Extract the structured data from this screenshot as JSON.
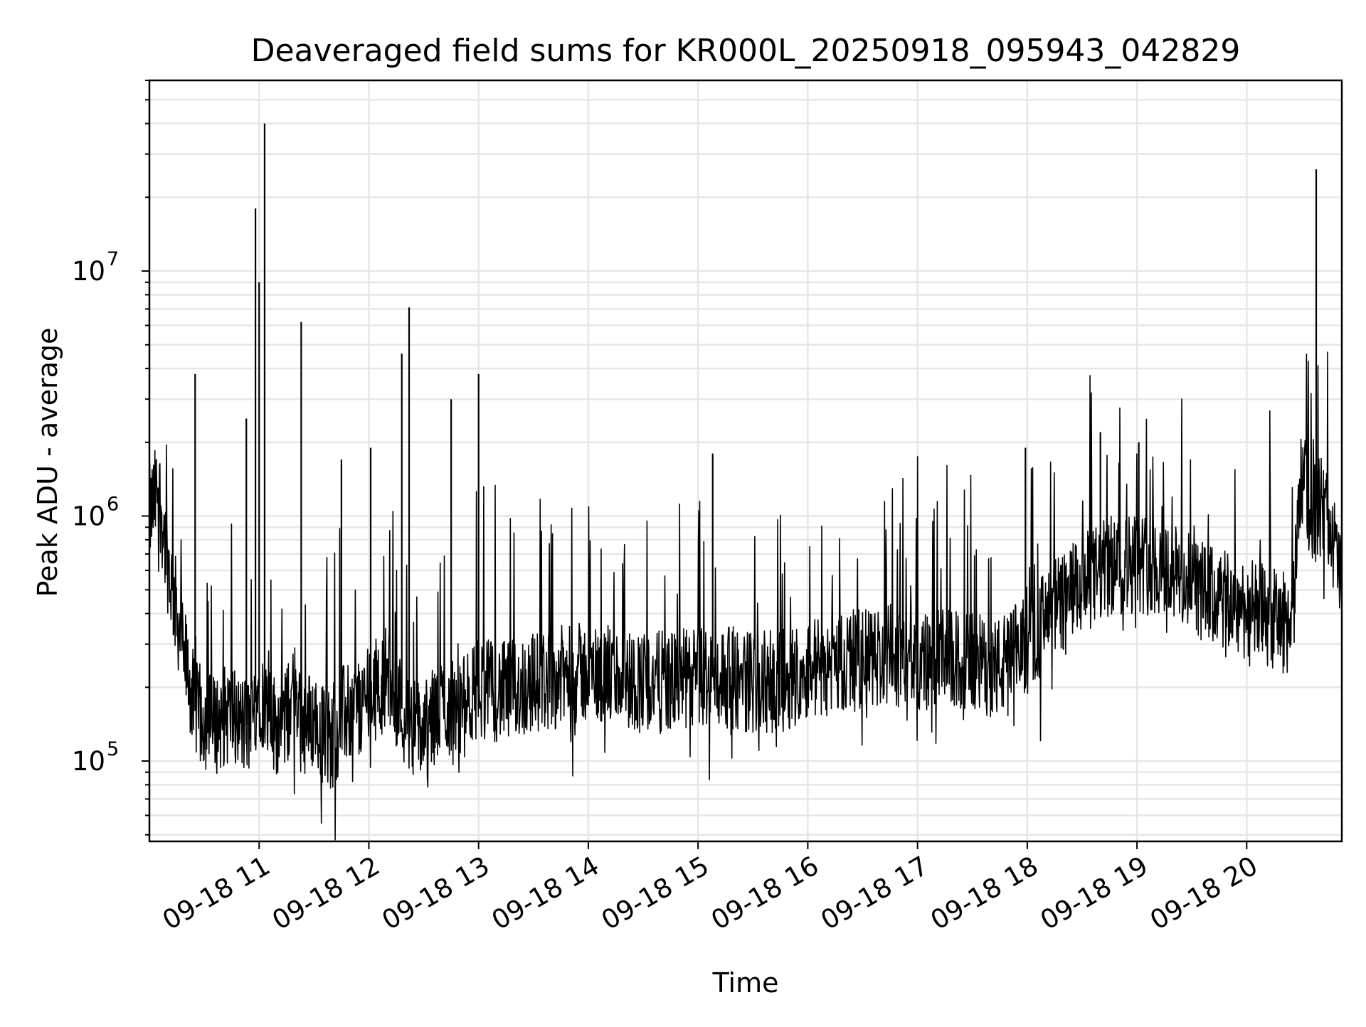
{
  "chart_data": {
    "type": "line",
    "title": "Deaveraged field sums for KR000L_20250918_095943_042829",
    "xlabel": "Time",
    "ylabel": "Peak ADU - average",
    "y_scale": "log",
    "ylim": [
      47000,
      60000000
    ],
    "xlim": [
      "09-18 10:00",
      "09-18 20:52"
    ],
    "x_ticks": [
      "09-18 11",
      "09-18 12",
      "09-18 13",
      "09-18 14",
      "09-18 15",
      "09-18 16",
      "09-18 17",
      "09-18 18",
      "09-18 19",
      "09-18 20"
    ],
    "y_ticks": [
      {
        "base": "10",
        "exp": "5",
        "value": 100000
      },
      {
        "base": "10",
        "exp": "6",
        "value": 1000000
      },
      {
        "base": "10",
        "exp": "7",
        "value": 10000000
      }
    ],
    "grid": true,
    "legend": "none",
    "series": [
      {
        "color": "#000000",
        "x": [
          "09-18 10:00",
          "09-18 10:05",
          "09-18 10:10",
          "09-18 10:15",
          "09-18 10:20",
          "09-18 10:25",
          "09-18 10:30",
          "09-18 10:35",
          "09-18 10:40",
          "09-18 10:45",
          "09-18 10:50",
          "09-18 10:55",
          "09-18 11:00",
          "09-18 11:05",
          "09-18 11:10",
          "09-18 11:15",
          "09-18 11:20",
          "09-18 11:25",
          "09-18 11:30",
          "09-18 11:35",
          "09-18 11:40",
          "09-18 11:45",
          "09-18 11:50",
          "09-18 11:55",
          "09-18 12:00",
          "09-18 12:10",
          "09-18 12:20",
          "09-18 12:30",
          "09-18 12:40",
          "09-18 12:50",
          "09-18 13:00",
          "09-18 13:15",
          "09-18 13:30",
          "09-18 13:45",
          "09-18 14:00",
          "09-18 14:15",
          "09-18 14:30",
          "09-18 14:45",
          "09-18 15:00",
          "09-18 15:15",
          "09-18 15:30",
          "09-18 15:45",
          "09-18 16:00",
          "09-18 16:15",
          "09-18 16:30",
          "09-18 16:45",
          "09-18 17:00",
          "09-18 17:15",
          "09-18 17:30",
          "09-18 17:45",
          "09-18 18:00",
          "09-18 18:15",
          "09-18 18:30",
          "09-18 18:45",
          "09-18 19:00",
          "09-18 19:15",
          "09-18 19:30",
          "09-18 19:45",
          "09-18 20:00",
          "09-18 20:15",
          "09-18 20:25",
          "09-18 20:30",
          "09-18 20:35",
          "09-18 20:40",
          "09-18 20:45",
          "09-18 20:50"
        ],
        "y": [
          1000000,
          1300000,
          650000,
          400000,
          250000,
          160000,
          150000,
          140000,
          150000,
          160000,
          140000,
          140000,
          200000,
          150000,
          140000,
          150000,
          200000,
          140000,
          150000,
          130000,
          120000,
          150000,
          160000,
          170000,
          180000,
          230000,
          150000,
          130000,
          170000,
          160000,
          200000,
          190000,
          210000,
          220000,
          230000,
          220000,
          210000,
          210000,
          220000,
          220000,
          210000,
          210000,
          240000,
          250000,
          260000,
          270000,
          250000,
          260000,
          250000,
          240000,
          300000,
          420000,
          520000,
          620000,
          650000,
          620000,
          520000,
          450000,
          420000,
          380000,
          360000,
          1500000,
          1000000,
          1100000,
          1000000,
          600000
        ]
      }
    ],
    "spikes": [
      {
        "x": "09-18 10:25",
        "y": 3800000
      },
      {
        "x": "09-18 10:53",
        "y": 2500000
      },
      {
        "x": "09-18 10:58",
        "y": 18000000
      },
      {
        "x": "09-18 11:00",
        "y": 9000000
      },
      {
        "x": "09-18 11:03",
        "y": 40000000
      },
      {
        "x": "09-18 11:23",
        "y": 6200000
      },
      {
        "x": "09-18 11:45",
        "y": 1700000
      },
      {
        "x": "09-18 12:01",
        "y": 1900000
      },
      {
        "x": "09-18 12:18",
        "y": 4600000
      },
      {
        "x": "09-18 12:22",
        "y": 7100000
      },
      {
        "x": "09-18 12:45",
        "y": 3000000
      },
      {
        "x": "09-18 13:00",
        "y": 3800000
      },
      {
        "x": "09-18 15:08",
        "y": 1800000
      },
      {
        "x": "09-18 17:59",
        "y": 1900000
      },
      {
        "x": "09-18 18:40",
        "y": 2200000
      },
      {
        "x": "09-18 19:01",
        "y": 2000000
      },
      {
        "x": "09-18 20:38",
        "y": 26000000
      }
    ]
  }
}
